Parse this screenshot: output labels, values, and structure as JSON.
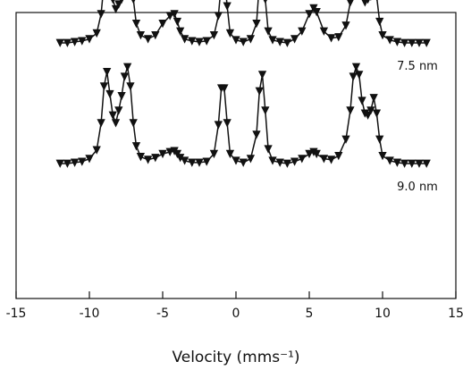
{
  "chart_data": {
    "type": "scatter",
    "xlabel": "Velocity (mms⁻¹)",
    "xlim": [
      -15,
      15
    ],
    "xticks": [
      "-15",
      "-10",
      "-5",
      "0",
      "5",
      "10",
      "15"
    ],
    "yaxis_visible": false,
    "grid": false,
    "marker": "down-triangle",
    "series": [
      {
        "name": "7.5 nm",
        "baseline": 1.0,
        "x": [
          -12.0,
          -11.5,
          -11.0,
          -10.5,
          -10.0,
          -9.5,
          -9.2,
          -9.0,
          -8.8,
          -8.6,
          -8.4,
          -8.2,
          -8.0,
          -7.8,
          -7.6,
          -7.4,
          -7.2,
          -7.0,
          -6.8,
          -6.5,
          -6.0,
          -5.5,
          -5.0,
          -4.5,
          -4.2,
          -4.0,
          -3.8,
          -3.5,
          -3.0,
          -2.5,
          -2.0,
          -1.5,
          -1.2,
          -1.0,
          -0.8,
          -0.6,
          -0.4,
          0.0,
          0.5,
          1.0,
          1.4,
          1.6,
          1.8,
          2.0,
          2.2,
          2.5,
          3.0,
          3.5,
          4.0,
          4.5,
          5.0,
          5.3,
          5.5,
          6.0,
          6.5,
          7.0,
          7.5,
          7.8,
          8.0,
          8.2,
          8.4,
          8.6,
          8.8,
          9.0,
          9.2,
          9.4,
          9.6,
          9.8,
          10.0,
          10.5,
          11.0,
          11.5,
          12.0,
          12.5,
          13.0
        ],
        "y": [
          0.0,
          0.0,
          -0.01,
          -0.02,
          -0.04,
          -0.1,
          -0.3,
          -0.62,
          -0.88,
          -0.7,
          -0.45,
          -0.35,
          -0.4,
          -0.45,
          -0.7,
          -0.92,
          -0.82,
          -0.45,
          -0.2,
          -0.08,
          -0.04,
          -0.08,
          -0.2,
          -0.28,
          -0.3,
          -0.22,
          -0.12,
          -0.04,
          -0.02,
          -0.01,
          -0.02,
          -0.08,
          -0.28,
          -0.62,
          -0.7,
          -0.38,
          -0.1,
          -0.03,
          -0.01,
          -0.04,
          -0.2,
          -0.62,
          -0.78,
          -0.45,
          -0.12,
          -0.03,
          -0.01,
          0.0,
          -0.04,
          -0.12,
          -0.3,
          -0.36,
          -0.32,
          -0.12,
          -0.05,
          -0.06,
          -0.18,
          -0.42,
          -0.82,
          -1.0,
          -0.92,
          -0.6,
          -0.42,
          -0.45,
          -0.48,
          -0.6,
          -0.48,
          -0.22,
          -0.08,
          -0.03,
          -0.01,
          0.0,
          0.0,
          0.0,
          0.0
        ]
      },
      {
        "name": "9.0 nm",
        "baseline": 0.0,
        "x": [
          -12.0,
          -11.5,
          -11.0,
          -10.5,
          -10.0,
          -9.5,
          -9.2,
          -9.0,
          -8.8,
          -8.6,
          -8.4,
          -8.2,
          -8.0,
          -7.8,
          -7.6,
          -7.4,
          -7.2,
          -7.0,
          -6.8,
          -6.5,
          -6.0,
          -5.5,
          -5.0,
          -4.5,
          -4.2,
          -4.0,
          -3.8,
          -3.5,
          -3.0,
          -2.5,
          -2.0,
          -1.5,
          -1.2,
          -1.0,
          -0.8,
          -0.6,
          -0.4,
          0.0,
          0.5,
          1.0,
          1.4,
          1.6,
          1.8,
          2.0,
          2.2,
          2.5,
          3.0,
          3.5,
          4.0,
          4.5,
          5.0,
          5.3,
          5.5,
          6.0,
          6.5,
          7.0,
          7.5,
          7.8,
          8.0,
          8.2,
          8.4,
          8.6,
          8.8,
          9.0,
          9.2,
          9.4,
          9.6,
          9.8,
          10.0,
          10.5,
          11.0,
          11.5,
          12.0,
          12.5,
          13.0
        ],
        "y": [
          0.0,
          0.0,
          -0.01,
          -0.02,
          -0.05,
          -0.14,
          -0.42,
          -0.8,
          -0.95,
          -0.72,
          -0.5,
          -0.42,
          -0.55,
          -0.7,
          -0.9,
          -1.0,
          -0.8,
          -0.42,
          -0.18,
          -0.07,
          -0.04,
          -0.06,
          -0.1,
          -0.12,
          -0.13,
          -0.1,
          -0.06,
          -0.03,
          -0.01,
          -0.01,
          -0.02,
          -0.1,
          -0.4,
          -0.78,
          -0.78,
          -0.42,
          -0.1,
          -0.03,
          -0.01,
          -0.05,
          -0.3,
          -0.75,
          -0.92,
          -0.55,
          -0.15,
          -0.03,
          -0.01,
          0.0,
          -0.02,
          -0.05,
          -0.1,
          -0.12,
          -0.1,
          -0.05,
          -0.04,
          -0.08,
          -0.25,
          -0.55,
          -0.9,
          -1.0,
          -0.92,
          -0.65,
          -0.52,
          -0.5,
          -0.55,
          -0.68,
          -0.52,
          -0.25,
          -0.08,
          -0.03,
          -0.01,
          0.0,
          0.0,
          0.0,
          0.0
        ]
      }
    ]
  }
}
